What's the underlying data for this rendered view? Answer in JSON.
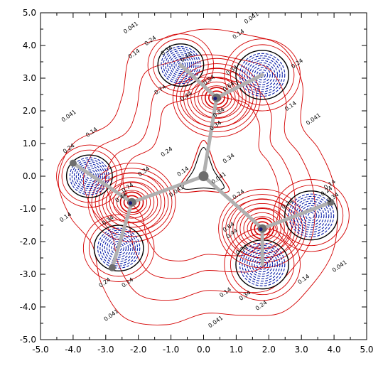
{
  "chart_data": {
    "type": "contour",
    "xlim": [
      -5.0,
      5.0
    ],
    "ylim": [
      -5.0,
      5.0
    ],
    "x_ticks": [
      "-5.0",
      "-4.0",
      "-3.0",
      "-2.0",
      "-1.0",
      "0.0",
      "1.0",
      "2.0",
      "3.0",
      "4.0",
      "5.0"
    ],
    "y_ticks": [
      "5.0",
      "4.0",
      "3.0",
      "2.0",
      "1.0",
      "0.0",
      "-1.0",
      "-2.0",
      "-3.0",
      "-4.0",
      "-5.0"
    ],
    "contour_levels": [
      0.041,
      0.14,
      0.24,
      0.34,
      0.44,
      0.54,
      0.64,
      0.74,
      0.84
    ],
    "grid": false,
    "colors": {
      "positive_contours": "#d40000",
      "negative_contours": "#0a1fa8",
      "zero_contour": "#000000",
      "bonds": "#b0b0b0",
      "atom_heavy": "#6e6e6e",
      "atom_dark": "#1a1a7a"
    },
    "metal_centers": [
      {
        "x": 0.4,
        "y": 2.4
      },
      {
        "x": -2.2,
        "y": -0.8
      },
      {
        "x": 1.8,
        "y": -1.6
      }
    ],
    "ligand_lobes": [
      {
        "x": -0.7,
        "y": 3.4,
        "r": 0.65
      },
      {
        "x": 1.8,
        "y": 3.1,
        "r": 0.75
      },
      {
        "x": -3.5,
        "y": 0.0,
        "r": 0.65
      },
      {
        "x": -2.6,
        "y": -2.2,
        "r": 0.7
      },
      {
        "x": 3.3,
        "y": -1.2,
        "r": 0.75
      },
      {
        "x": 1.8,
        "y": -2.7,
        "r": 0.75
      }
    ],
    "central_atom": {
      "x": 0.0,
      "y": 0.0
    },
    "outer_atoms": [
      {
        "x": -4.0,
        "y": 0.4
      },
      {
        "x": -2.8,
        "y": -2.8
      },
      {
        "x": 3.9,
        "y": -0.8
      }
    ],
    "contour_labels": [
      {
        "text": "0.041",
        "x": -2.2,
        "y": 4.5
      },
      {
        "text": "0.041",
        "x": 1.5,
        "y": 4.8
      },
      {
        "text": "0.041",
        "x": -4.1,
        "y": 1.8
      },
      {
        "text": "0.041",
        "x": 3.4,
        "y": 1.7
      },
      {
        "text": "0.041",
        "x": -2.8,
        "y": -4.3
      },
      {
        "text": "0.041",
        "x": 0.4,
        "y": -4.5
      },
      {
        "text": "0.041",
        "x": 4.2,
        "y": -2.8
      },
      {
        "text": "0.041",
        "x": 0.5,
        "y": -0.1
      },
      {
        "text": "0.041",
        "x": -0.8,
        "y": -0.5
      },
      {
        "text": "0.14",
        "x": 1.1,
        "y": 4.3
      },
      {
        "text": "0.14",
        "x": -2.1,
        "y": 3.7
      },
      {
        "text": "0.14",
        "x": -3.4,
        "y": 1.3
      },
      {
        "text": "0.14",
        "x": 2.7,
        "y": 2.1
      },
      {
        "text": "0.14",
        "x": -0.6,
        "y": 0.1
      },
      {
        "text": "0.14",
        "x": -4.2,
        "y": -1.3
      },
      {
        "text": "0.14",
        "x": -2.3,
        "y": -3.3
      },
      {
        "text": "0.14",
        "x": 3.1,
        "y": -3.2
      },
      {
        "text": "0.14",
        "x": 0.7,
        "y": -3.6
      },
      {
        "text": "0.14",
        "x": 3.9,
        "y": -0.3
      },
      {
        "text": "0.24",
        "x": -1.6,
        "y": 4.1
      },
      {
        "text": "0.24",
        "x": 2.9,
        "y": 3.4
      },
      {
        "text": "0.24",
        "x": -4.1,
        "y": 0.8
      },
      {
        "text": "0.24",
        "x": -1.1,
        "y": 0.7
      },
      {
        "text": "0.24",
        "x": 1.1,
        "y": -0.6
      },
      {
        "text": "0.24",
        "x": -3.0,
        "y": -3.3
      },
      {
        "text": "0.24",
        "x": 1.8,
        "y": -4.0
      },
      {
        "text": "0.24",
        "x": 2.6,
        "y": -0.9
      },
      {
        "text": "0.24",
        "x": 3.8,
        "y": -0.5
      },
      {
        "text": "0.34",
        "x": 0.4,
        "y": 1.5
      },
      {
        "text": "0.34",
        "x": -1.1,
        "y": 3.8
      },
      {
        "text": "0.34",
        "x": 0.9,
        "y": 3.2
      },
      {
        "text": "0.34",
        "x": -1.8,
        "y": 0.1
      },
      {
        "text": "0.34",
        "x": 0.8,
        "y": 0.5
      },
      {
        "text": "0.34",
        "x": -2.9,
        "y": -1.4
      },
      {
        "text": "0.34",
        "x": 1.2,
        "y": -2.3
      },
      {
        "text": "0.34",
        "x": 1.3,
        "y": -3.7
      },
      {
        "text": "0.34",
        "x": 4.0,
        "y": -0.7
      },
      {
        "text": "0.44",
        "x": -0.5,
        "y": 3.6
      },
      {
        "text": "0.44",
        "x": -0.5,
        "y": 2.4
      },
      {
        "text": "0.44",
        "x": -2.5,
        "y": -0.7
      },
      {
        "text": "0.44",
        "x": 0.9,
        "y": -1.8
      },
      {
        "text": "0.54",
        "x": 0.2,
        "y": 2.9
      },
      {
        "text": "0.64",
        "x": 0.8,
        "y": 2.7
      },
      {
        "text": "0.64",
        "x": 0.8,
        "y": -1.6
      },
      {
        "text": "0.74",
        "x": -1.3,
        "y": 2.6
      },
      {
        "text": "0.74",
        "x": -2.3,
        "y": -0.4
      },
      {
        "text": "0.84",
        "x": 0.5,
        "y": 1.9
      }
    ]
  }
}
